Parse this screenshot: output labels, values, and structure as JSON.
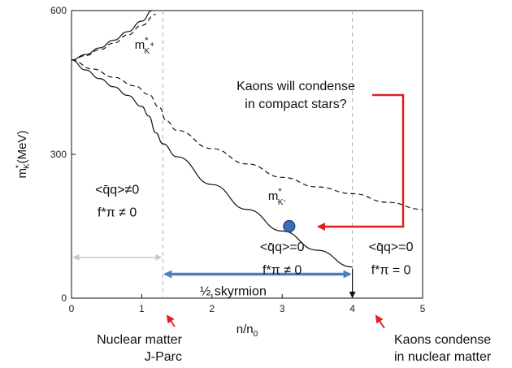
{
  "chart_data": {
    "type": "line",
    "xlabel": "n/n",
    "xlabel_sub": "0",
    "ylabel": "m",
    "ylabel_star": "*",
    "ylabel_sub": "K",
    "ylabel_unit": "(MeV)",
    "xlim": [
      0,
      5
    ],
    "ylim": [
      0,
      600
    ],
    "x_ticks": [
      0,
      1,
      2,
      3,
      4,
      5
    ],
    "y_ticks": [
      0,
      300,
      600
    ],
    "grid": false,
    "series": [
      {
        "name": "m*K+ solid",
        "style": "solid",
        "x": [
          0,
          0.2,
          0.4,
          0.6,
          0.8,
          1.0,
          1.15
        ],
        "y": [
          497,
          508,
          522,
          538,
          556,
          578,
          600
        ]
      },
      {
        "name": "m*K+ dashed",
        "style": "dashed",
        "x": [
          0,
          0.2,
          0.4,
          0.6,
          0.8,
          1.0,
          1.2
        ],
        "y": [
          497,
          506,
          518,
          532,
          549,
          569,
          592
        ]
      },
      {
        "name": "m*K- solid",
        "style": "solid",
        "x": [
          0,
          0.2,
          0.4,
          0.6,
          0.8,
          1.0,
          1.1,
          1.2,
          1.3,
          1.5,
          2.0,
          2.5,
          3.0,
          3.5,
          4.0
        ],
        "y": [
          497,
          476,
          458,
          441,
          423,
          400,
          380,
          345,
          322,
          295,
          237,
          185,
          140,
          100,
          65
        ]
      },
      {
        "name": "m*K- dashed",
        "style": "dashed",
        "x": [
          0,
          0.3,
          0.6,
          0.9,
          1.1,
          1.25,
          1.35,
          1.5,
          2.0,
          2.5,
          3.0,
          3.5,
          4.0,
          4.5,
          5.0
        ],
        "y": [
          497,
          478,
          461,
          443,
          425,
          398,
          370,
          350,
          312,
          280,
          252,
          232,
          218,
          200,
          185
        ]
      }
    ],
    "vlines": [
      1.3,
      4.0
    ],
    "marker": {
      "x": 3.1,
      "y": 150
    },
    "curve_labels": [
      {
        "base": "m",
        "star": "*",
        "sub": "K",
        "sup2": "+",
        "x": 0.9,
        "y": 520
      },
      {
        "base": "m",
        "star": "*",
        "sub": "K",
        "sup2": "-",
        "x": 2.8,
        "y": 205
      }
    ],
    "region_notes": [
      {
        "line1": "<q̄q>≠0",
        "line2": "f*π ≠ 0",
        "x": 0.65,
        "y1": 218,
        "y2": 170
      },
      {
        "line1": "<q̄q>=0",
        "line2": "f*π ≠ 0",
        "x": 3.0,
        "y1": 98,
        "y2": 50
      },
      {
        "line1": "<q̄q>=0",
        "line2": "f*π = 0",
        "x": 4.55,
        "y1": 98,
        "y2": 50
      }
    ],
    "range_arrows": [
      {
        "label": "",
        "from": 0,
        "to": 1.3,
        "y": 85,
        "color": "#c8c8c8"
      },
      {
        "label": "½ skyrmion",
        "from": 1.3,
        "to": 4.0,
        "y": 50,
        "color": "#4a7fc0"
      }
    ],
    "annotations": {
      "question": [
        "Kaons will condense",
        "in compact stars?"
      ],
      "below_left": [
        "Nuclear matter",
        "J-Parc"
      ],
      "below_right": [
        "Kaons condense",
        "in nuclear matter"
      ]
    },
    "colors": {
      "curve": "#111111",
      "vline": "#b0b0b0",
      "bracket_arrow": "#e02020",
      "range_arrow": "#4a7fc0",
      "marker": "#3a6db5",
      "small_arrow": "#e02020"
    }
  }
}
